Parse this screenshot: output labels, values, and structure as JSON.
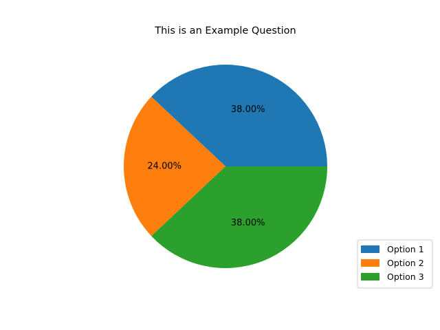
{
  "chart_data": {
    "type": "pie",
    "title": "This is an Example Question",
    "categories": [
      "Option 1",
      "Option 2",
      "Option 3"
    ],
    "values": [
      38.0,
      24.0,
      38.0
    ],
    "labels": [
      "38.00%",
      "24.00%",
      "38.00%"
    ],
    "colors": [
      "#1f77b4",
      "#ff7f0e",
      "#2ca02c"
    ],
    "start_angle_deg": 0,
    "direction": "counterclockwise",
    "legend": {
      "placement": "bottom-right",
      "entries": [
        "Option 1",
        "Option 2",
        "Option 3"
      ]
    }
  }
}
